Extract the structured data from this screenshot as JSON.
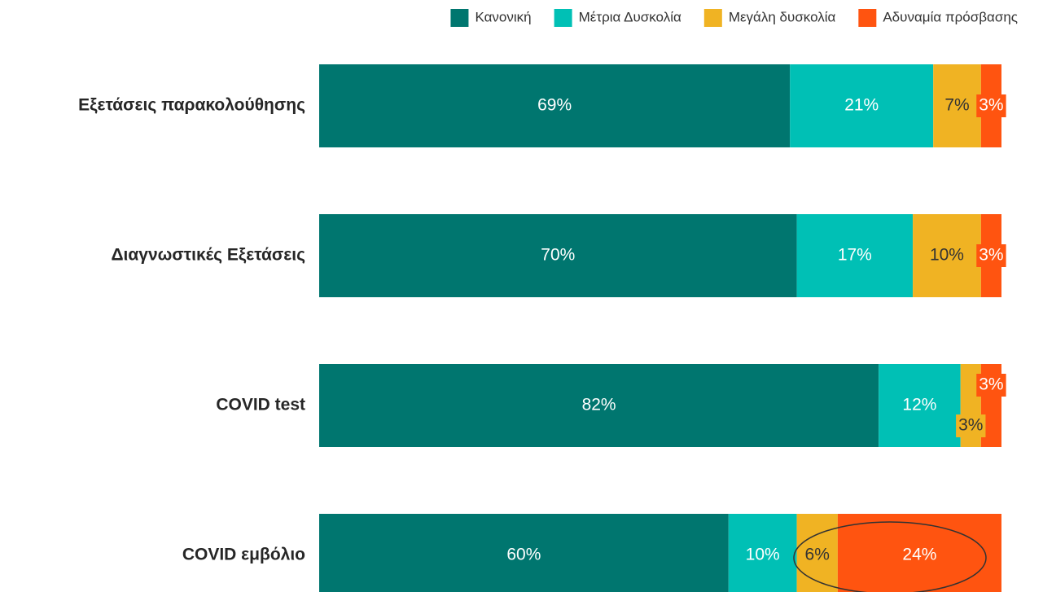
{
  "chart_data": {
    "type": "stacked-bar-horizontal",
    "categories": [
      "Εξετάσεις παρακολούθησης",
      "Διαγνωστικές Εξετάσεις",
      "COVID test",
      "COVID εμβόλιο"
    ],
    "series": [
      {
        "name": "Κανονική",
        "color": "#00766f",
        "values": [
          69,
          70,
          82,
          60
        ],
        "value_labels": [
          "69%",
          "70%",
          "82%",
          "60%"
        ]
      },
      {
        "name": "Μέτρια Δυσκολία",
        "color": "#00c0b5",
        "values": [
          21,
          17,
          12,
          10
        ],
        "value_labels": [
          "21%",
          "17%",
          "12%",
          "10%"
        ]
      },
      {
        "name": "Μεγάλη δυσκολία",
        "color": "#f0b323",
        "values": [
          7,
          10,
          3,
          6
        ],
        "value_labels": [
          "7%",
          "10%",
          "3%",
          "6%"
        ]
      },
      {
        "name": "Αδυναμία πρόσβασης",
        "color": "#ff5410",
        "values": [
          3,
          3,
          3,
          24
        ],
        "value_labels": [
          "3%",
          "3%",
          "3%",
          "24%"
        ]
      }
    ],
    "xlim": [
      0,
      100
    ],
    "legend": "top-right"
  }
}
